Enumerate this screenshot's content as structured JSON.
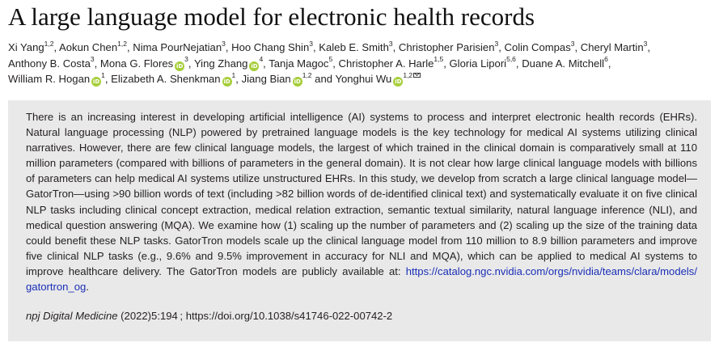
{
  "title": "A large language model for electronic health records",
  "authors": [
    {
      "name": "Xi Yang",
      "aff": "1,2",
      "orcid": false,
      "sep": ", "
    },
    {
      "name": "Aokun Chen",
      "aff": "1,2",
      "orcid": false,
      "sep": ", "
    },
    {
      "name": "Nima PourNejatian",
      "aff": "3",
      "orcid": false,
      "sep": ", "
    },
    {
      "name": "Hoo Chang Shin",
      "aff": "3",
      "orcid": false,
      "sep": ", "
    },
    {
      "name": "Kaleb E. Smith",
      "aff": "3",
      "orcid": false,
      "sep": ", "
    },
    {
      "name": "Christopher Parisien",
      "aff": "3",
      "orcid": false,
      "sep": ", "
    },
    {
      "name": "Colin Compas",
      "aff": "3",
      "orcid": false,
      "sep": ", "
    },
    {
      "name": "Cheryl Martin",
      "aff": "3",
      "orcid": false,
      "sep": ", "
    },
    {
      "name": "Anthony B. Costa",
      "aff": "3",
      "orcid": false,
      "sep": ", "
    },
    {
      "name": "Mona G. Flores",
      "aff": "3",
      "orcid": true,
      "sep": ", "
    },
    {
      "name": "Ying Zhang",
      "aff": "4",
      "orcid": true,
      "sep": ", "
    },
    {
      "name": "Tanja Magoc",
      "aff": "5",
      "orcid": false,
      "sep": ", "
    },
    {
      "name": "Christopher A. Harle",
      "aff": "1,5",
      "orcid": false,
      "sep": ", "
    },
    {
      "name": "Gloria Lipori",
      "aff": "5,6",
      "orcid": false,
      "sep": ", "
    },
    {
      "name": "Duane A. Mitchell",
      "aff": "6",
      "orcid": false,
      "sep": ", "
    },
    {
      "name": "William R. Hogan",
      "aff": "1",
      "orcid": true,
      "sep": ", "
    },
    {
      "name": "Elizabeth A. Shenkman",
      "aff": "1",
      "orcid": true,
      "sep": ", "
    },
    {
      "name": "Jiang Bian",
      "aff": "1,2",
      "orcid": true,
      "sep": " and "
    },
    {
      "name": "Yonghui Wu",
      "aff": "1,2",
      "orcid": true,
      "sep": "",
      "corresponding": true
    }
  ],
  "orcid_label": "iD",
  "abstract": {
    "text": "There is an increasing interest in developing artificial intelligence (AI) systems to process and interpret electronic health records (EHRs). Natural language processing (NLP) powered by pretrained language models is the key technology for medical AI systems utilizing clinical narratives. However, there are few clinical language models, the largest of which trained in the clinical domain is comparatively small at 110 million parameters (compared with billions of parameters in the general domain). It is not clear how large clinical language models with billions of parameters can help medical AI systems utilize unstructured EHRs. In this study, we develop from scratch a large clinical language model—GatorTron—using >90 billion words of text (including >82 billion words of de-identified clinical text) and systematically evaluate it on five clinical NLP tasks including clinical concept extraction, medical relation extraction, semantic textual similarity, natural language inference (NLI), and medical question answering (MQA). We examine how (1) scaling up the number of parameters and (2) scaling up the size of the training data could benefit these NLP tasks. GatorTron models scale up the clinical language model from 110 million to 8.9 billion parameters and improve five clinical NLP tasks (e.g., 9.6% and 9.5% improvement in accuracy for NLI and MQA), which can be applied to medical AI systems to improve healthcare delivery. The GatorTron models are publicly available at: ",
    "link": "https://catalog.ngc.nvidia.com/orgs/nvidia/teams/clara/models/gatortron_og",
    "text_end": "."
  },
  "citation": {
    "journal": "npj Digital Medicine",
    "details": " (2022)5:194 ; https://doi.org/10.1038/s41746-022-00742-2"
  },
  "colors": {
    "abstract_bg": "#e9e9ea",
    "link": "#1a2fb5",
    "orcid": "#a6ce39",
    "text": "#231f20"
  }
}
